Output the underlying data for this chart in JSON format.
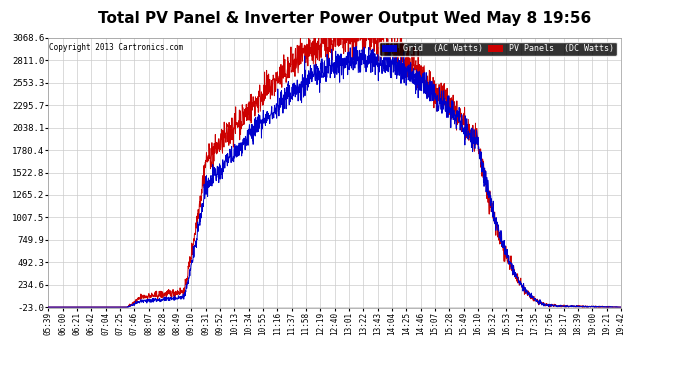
{
  "title": "Total PV Panel & Inverter Power Output Wed May 8 19:56",
  "copyright": "Copyright 2013 Cartronics.com",
  "legend_blue_label": "Grid  (AC Watts)",
  "legend_red_label": "PV Panels  (DC Watts)",
  "y_ticks": [
    -23.0,
    234.6,
    492.3,
    749.9,
    1007.5,
    1265.2,
    1522.8,
    1780.4,
    2038.1,
    2295.7,
    2553.3,
    2811.0,
    3068.6
  ],
  "x_labels": [
    "05:39",
    "06:00",
    "06:21",
    "06:42",
    "07:04",
    "07:25",
    "07:46",
    "08:07",
    "08:28",
    "08:49",
    "09:10",
    "09:31",
    "09:52",
    "10:13",
    "10:34",
    "10:55",
    "11:16",
    "11:37",
    "11:58",
    "12:19",
    "12:40",
    "13:01",
    "13:22",
    "13:43",
    "14:04",
    "14:25",
    "14:46",
    "15:07",
    "15:28",
    "15:49",
    "16:10",
    "16:32",
    "16:53",
    "17:14",
    "17:35",
    "17:56",
    "18:17",
    "18:39",
    "19:00",
    "19:21",
    "19:42"
  ],
  "bg_color": "#ffffff",
  "grid_color": "#cccccc",
  "blue_color": "#0000cc",
  "red_color": "#cc0000",
  "title_fontsize": 11,
  "y_min": -23.0,
  "y_max": 3068.6
}
